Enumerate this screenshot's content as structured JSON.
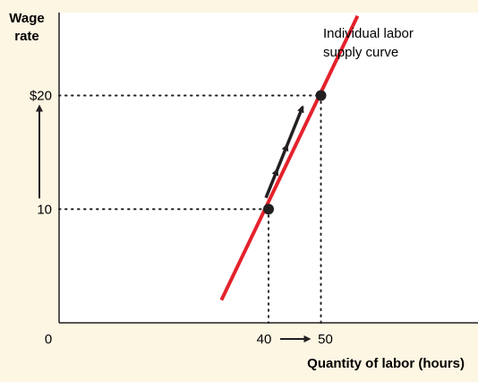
{
  "chart_data": {
    "type": "line",
    "ylabel": [
      "Wage",
      "rate"
    ],
    "xlabel": "Quantity of labor (hours)",
    "origin_label": "0",
    "x_ticks": [
      {
        "value": 40,
        "label": "40"
      },
      {
        "value": 50,
        "label": "50"
      }
    ],
    "y_ticks": [
      {
        "value": 10,
        "label": "10"
      },
      {
        "value": 20,
        "label": "$20"
      }
    ],
    "series": [
      {
        "name": "Individual labor supply curve",
        "label_lines": [
          "Individual labor",
          "supply curve"
        ],
        "points": [
          [
            31,
            2
          ],
          [
            57,
            27
          ]
        ],
        "color": "#e4222c"
      }
    ],
    "highlight_points": [
      [
        40,
        10
      ],
      [
        50,
        20
      ]
    ],
    "annotations": [
      {
        "type": "arrow",
        "from": [
          39.5,
          11
        ],
        "to": [
          46.5,
          19
        ],
        "color": "#231f20"
      },
      {
        "type": "arrow",
        "axis": "y",
        "from": 10,
        "to": 20,
        "color": "#231f20"
      },
      {
        "type": "arrow",
        "axis": "x",
        "from": 40,
        "to": 50,
        "color": "#231f20"
      }
    ],
    "xlim": [
      0,
      80
    ],
    "ylim": [
      0,
      27.3
    ],
    "grid": false,
    "legend": "none"
  }
}
